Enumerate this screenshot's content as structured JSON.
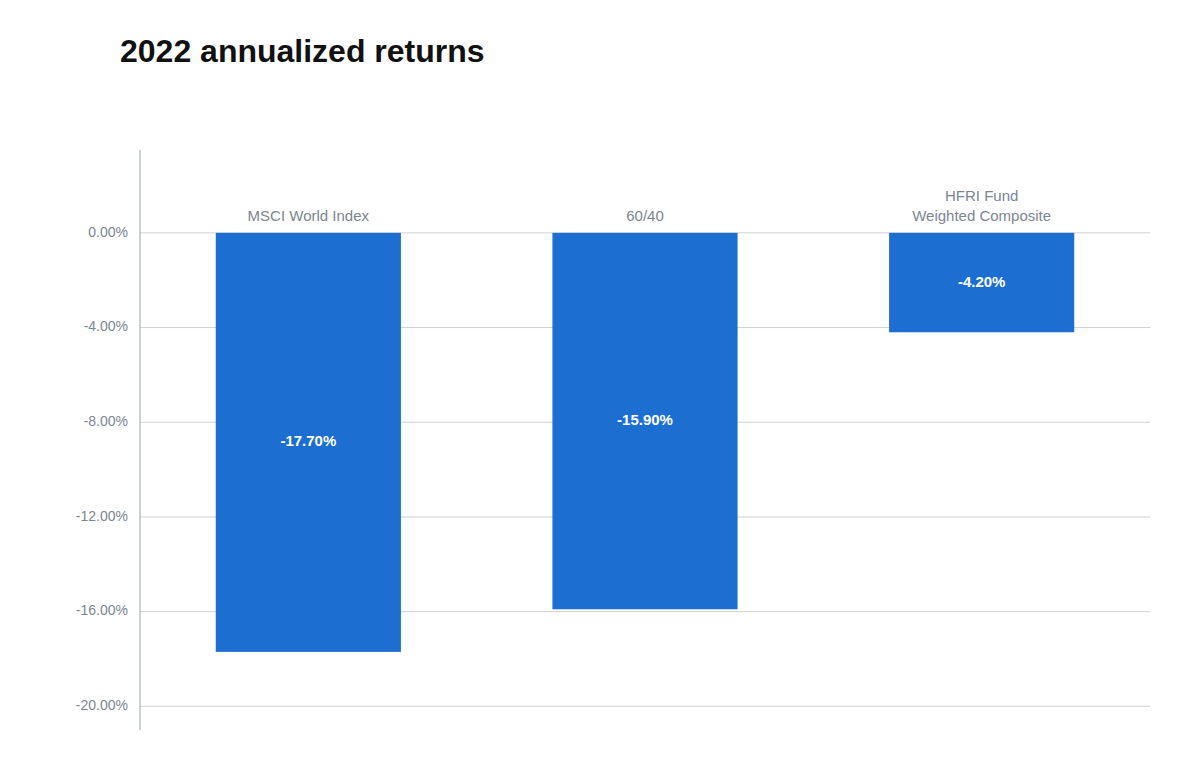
{
  "chart_data": {
    "type": "bar",
    "title": "2022 annualized returns",
    "categories": [
      "MSCI World Index",
      "60/40",
      "HFRI Fund\nWeighted Composite"
    ],
    "values": [
      -17.7,
      -15.9,
      -4.2
    ],
    "value_labels": [
      "-17.70%",
      "-15.90%",
      "-4.20%"
    ],
    "data_labels": true,
    "color": "#1C6FD1",
    "ylim": [
      -21.0,
      3.5
    ],
    "yticks": [
      {
        "value": 0,
        "label": "0.00%"
      },
      {
        "value": -4,
        "label": "-4.00%"
      },
      {
        "value": -8,
        "label": "-8.00%"
      },
      {
        "value": -12,
        "label": "-12.00%"
      },
      {
        "value": -16,
        "label": "-16.00%"
      },
      {
        "value": -20,
        "label": "-20.00%"
      }
    ],
    "grid": true
  }
}
